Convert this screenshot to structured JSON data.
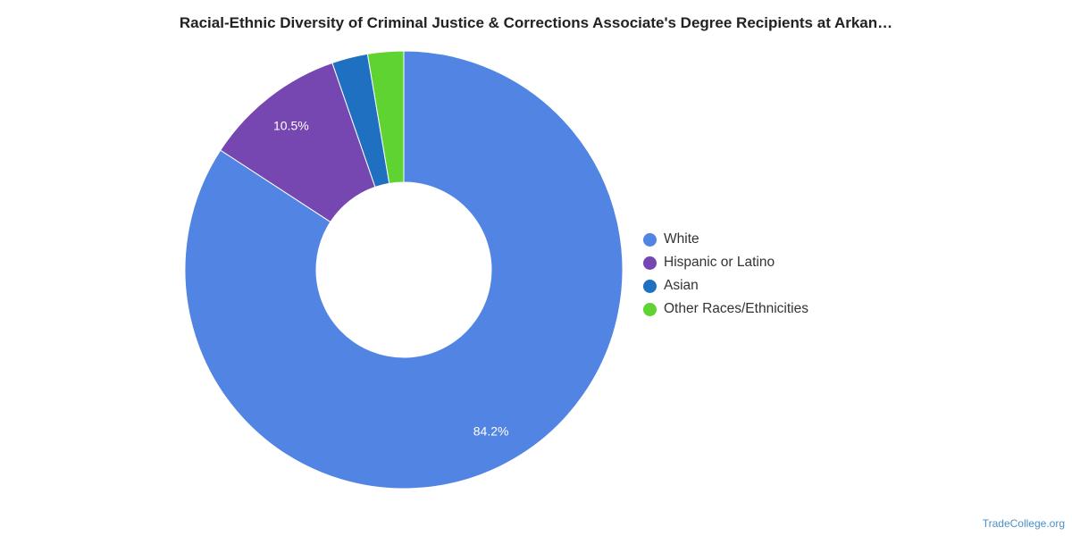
{
  "chart_data": {
    "type": "pie",
    "title": "Racial-Ethnic Diversity of Criminal Justice & Corrections Associate's Degree Recipients at Arkan…",
    "donut": true,
    "legend_position": "right",
    "slices": [
      {
        "name": "White",
        "value": 84.2,
        "label": "84.2%",
        "color": "#5285e3"
      },
      {
        "name": "Hispanic or Latino",
        "value": 10.5,
        "label": "10.5%",
        "color": "#7647b0"
      },
      {
        "name": "Asian",
        "value": 2.65,
        "label": "",
        "color": "#1f70c1"
      },
      {
        "name": "Other Races/Ethnicities",
        "value": 2.65,
        "label": "",
        "color": "#5ed331"
      }
    ]
  },
  "footer": {
    "source": "TradeCollege.org"
  }
}
